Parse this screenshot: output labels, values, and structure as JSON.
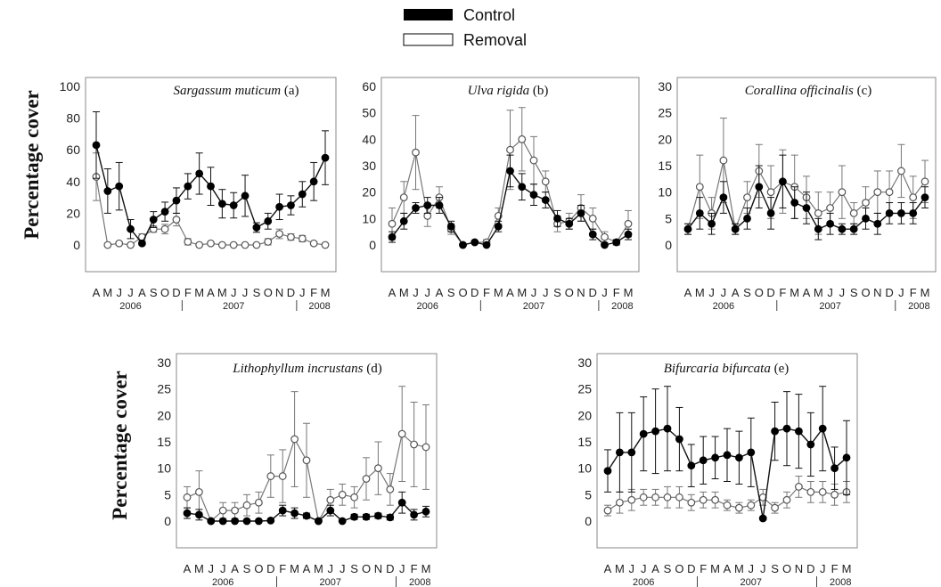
{
  "legend": [
    {
      "label": "Control",
      "color": "#000000"
    },
    {
      "label": "Removal",
      "color": "#ffffff"
    }
  ],
  "y_label": "Percentage cover",
  "x_month_labels": [
    "A",
    "M",
    "J",
    "J",
    "A",
    "S",
    "O",
    "D",
    "F",
    "M",
    "A",
    "M",
    "J",
    "J",
    "S",
    "O",
    "N",
    "D",
    "J",
    "F",
    "M"
  ],
  "year_labels": [
    "2006",
    "2007",
    "2008"
  ],
  "chart_data": [
    {
      "type": "line",
      "title": "Sargassum muticum",
      "panel_tag": "(a)",
      "ylabel": "Percentage cover",
      "ylim": [
        0,
        100
      ],
      "yticks": [
        0,
        20,
        40,
        60,
        80,
        100
      ],
      "series": [
        {
          "name": "Control",
          "values": [
            63,
            34,
            37,
            10,
            1,
            16,
            21,
            28,
            37,
            45,
            37,
            26,
            25,
            31,
            11,
            15,
            24,
            25,
            32,
            40,
            55
          ],
          "errors": [
            21,
            14,
            15,
            6,
            1,
            5,
            6,
            8,
            8,
            13,
            12,
            9,
            8,
            13,
            3,
            5,
            8,
            6,
            8,
            12,
            17
          ]
        },
        {
          "name": "Removal",
          "values": [
            43,
            0,
            1,
            0,
            5,
            10,
            10,
            16,
            2,
            0,
            1,
            0,
            0,
            0,
            0,
            2,
            7,
            5,
            4,
            1,
            0
          ],
          "errors": [
            15,
            0,
            1,
            0,
            2,
            2,
            3,
            4,
            2,
            0,
            1,
            0,
            0,
            0,
            0,
            2,
            3,
            2,
            2,
            1,
            0
          ]
        }
      ]
    },
    {
      "type": "line",
      "title": "Ulva rigida",
      "panel_tag": "(b)",
      "ylabel": "",
      "ylim": [
        0,
        60
      ],
      "yticks": [
        0,
        10,
        20,
        30,
        40,
        50,
        60
      ],
      "series": [
        {
          "name": "Control",
          "values": [
            3,
            9,
            14,
            15,
            15,
            7,
            0,
            1,
            0,
            7,
            28,
            22,
            19,
            17,
            10,
            8,
            12,
            4,
            0,
            1,
            4
          ],
          "errors": [
            2,
            3,
            2,
            3,
            3,
            2,
            0,
            0,
            0,
            2,
            6,
            5,
            4,
            3,
            3,
            2,
            3,
            2,
            0,
            1,
            2
          ]
        },
        {
          "name": "Removal",
          "values": [
            8,
            18,
            35,
            11,
            18,
            6,
            0,
            1,
            1,
            11,
            36,
            40,
            32,
            24,
            8,
            9,
            14,
            10,
            3,
            1,
            8
          ],
          "errors": [
            6,
            6,
            14,
            4,
            4,
            2,
            0,
            0,
            1,
            3,
            15,
            12,
            9,
            4,
            3,
            3,
            5,
            4,
            2,
            1,
            5
          ]
        }
      ]
    },
    {
      "type": "line",
      "title": "Corallina officinalis",
      "panel_tag": "(c)",
      "ylabel": "",
      "ylim": [
        0,
        30
      ],
      "yticks": [
        0,
        5,
        10,
        15,
        20,
        25,
        30
      ],
      "series": [
        {
          "name": "Control",
          "values": [
            3,
            6,
            4,
            9,
            3,
            5,
            11,
            6,
            12,
            8,
            7,
            3,
            4,
            3,
            3,
            5,
            4,
            6,
            6,
            6,
            9
          ],
          "errors": [
            1,
            3,
            2,
            3,
            1,
            2,
            4,
            3,
            5,
            3,
            3,
            2,
            2,
            1,
            1,
            2,
            2,
            2,
            2,
            2,
            2
          ]
        },
        {
          "name": "Removal",
          "values": [
            3,
            11,
            6,
            16,
            3,
            9,
            14,
            10,
            12,
            11,
            9,
            6,
            7,
            10,
            6,
            8,
            10,
            10,
            14,
            9,
            12
          ],
          "errors": [
            1,
            6,
            3,
            8,
            1,
            3,
            5,
            5,
            6,
            6,
            4,
            4,
            3,
            5,
            2,
            3,
            4,
            4,
            5,
            4,
            4
          ]
        }
      ]
    },
    {
      "type": "line",
      "title": "Lithophyllum incrustans",
      "panel_tag": "(d)",
      "ylabel": "Percentage cover",
      "ylim": [
        0,
        30
      ],
      "yticks": [
        0,
        5,
        10,
        15,
        20,
        25,
        30
      ],
      "series": [
        {
          "name": "Control",
          "values": [
            1.5,
            1.2,
            0,
            0,
            0,
            0,
            0,
            0.1,
            2,
            1.5,
            1,
            0,
            2,
            0,
            0.8,
            0.8,
            1,
            0.7,
            3.5,
            1.2,
            1.8
          ],
          "errors": [
            1,
            1,
            0,
            0,
            0,
            0,
            0,
            0.2,
            1,
            1,
            0.5,
            0,
            1,
            0,
            0.5,
            0.5,
            0.5,
            0.5,
            2,
            1,
            1
          ]
        },
        {
          "name": "Removal",
          "values": [
            4.5,
            5.5,
            0,
            2,
            2,
            3,
            3.5,
            8.5,
            8.5,
            15.5,
            11.5,
            0,
            4,
            5,
            4.5,
            8,
            10,
            6,
            16.5,
            14.5,
            14
          ],
          "errors": [
            2,
            4,
            0,
            1.5,
            1.5,
            2,
            2,
            4,
            5,
            9,
            7,
            0,
            2,
            2,
            2,
            4,
            5,
            3,
            9,
            8,
            8
          ]
        }
      ]
    },
    {
      "type": "line",
      "title": "Bifurcaria bifurcata",
      "panel_tag": "(e)",
      "ylabel": "",
      "ylim": [
        0,
        30
      ],
      "yticks": [
        0,
        5,
        10,
        15,
        20,
        25,
        30
      ],
      "series": [
        {
          "name": "Control",
          "values": [
            9.5,
            13,
            13,
            16.5,
            17,
            17.5,
            15.5,
            10.5,
            11.5,
            12,
            12.5,
            12,
            13,
            0.5,
            17,
            17.5,
            17,
            14.5,
            17.5,
            10,
            12
          ],
          "errors": [
            4,
            7.5,
            7.5,
            7,
            8,
            8,
            6,
            4,
            4.5,
            4,
            5,
            5,
            6.5,
            0.3,
            5.5,
            7,
            7,
            6,
            8,
            4,
            7
          ]
        },
        {
          "name": "Removal",
          "values": [
            2,
            3.5,
            4,
            4.5,
            4.5,
            4.5,
            4.5,
            3.5,
            4,
            4,
            3,
            2.5,
            3,
            4.5,
            2.5,
            4,
            6.5,
            5.5,
            5.5,
            5,
            5.5
          ],
          "errors": [
            1,
            2,
            2,
            1.5,
            1.5,
            2,
            2,
            1.5,
            1.5,
            1.5,
            1,
            1,
            1,
            1.5,
            1,
            1.5,
            2,
            2,
            2,
            2,
            2
          ]
        }
      ]
    }
  ]
}
